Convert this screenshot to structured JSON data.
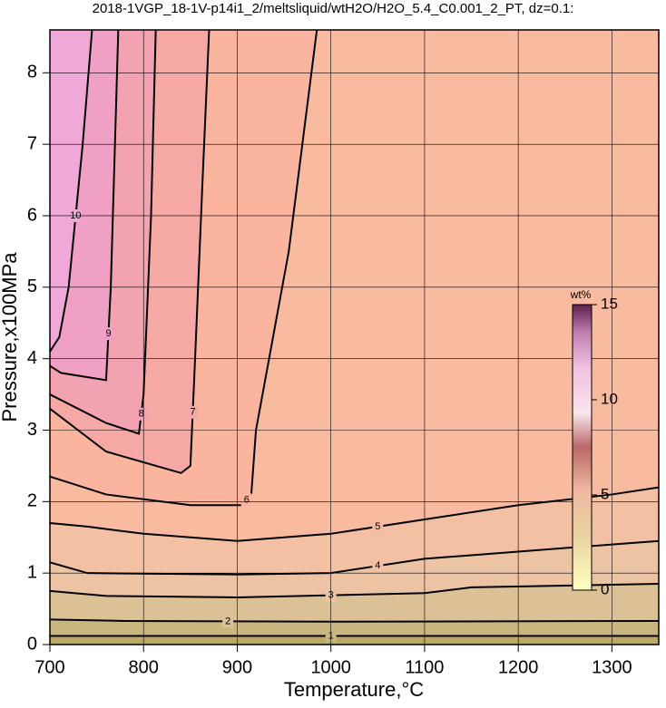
{
  "chart_data": {
    "type": "contour",
    "title": "2018-1VGP_18-1V-p14i1_2/meltsliquid/wtH2O/H2O_5.4_C0.001_2_PT, dz=0.1:",
    "x_label": "Temperature,°C",
    "y_label": "Pressure,x100MPa",
    "xlim": [
      700,
      1350
    ],
    "ylim": [
      0,
      8.6
    ],
    "xticks": [
      700,
      800,
      900,
      1000,
      1100,
      1200,
      1300
    ],
    "yticks": [
      0,
      1,
      2,
      3,
      4,
      5,
      6,
      7,
      8
    ],
    "grid": true,
    "contours": [
      {
        "level": 1,
        "color": "#c9b680",
        "x": [
          700,
          900,
          1100,
          1350
        ],
        "y": [
          0.12,
          0.12,
          0.12,
          0.12
        ]
      },
      {
        "level": 2,
        "color": "#dcc096",
        "x": [
          700,
          780,
          1000,
          1350
        ],
        "y": [
          0.35,
          0.33,
          0.32,
          0.33
        ]
      },
      {
        "level": 3,
        "color": "#ecc4a4",
        "x": [
          700,
          760,
          900,
          1100,
          1150,
          1350
        ],
        "y": [
          0.75,
          0.68,
          0.66,
          0.72,
          0.8,
          0.85
        ]
      },
      {
        "level": 4,
        "color": "#f3c0a3",
        "x": [
          700,
          740,
          900,
          1000,
          1100,
          1200,
          1350
        ],
        "y": [
          1.15,
          1.0,
          0.98,
          1.0,
          1.2,
          1.3,
          1.45
        ]
      },
      {
        "level": 5,
        "color": "#f8bba0",
        "x": [
          700,
          740,
          800,
          900,
          1000,
          1100,
          1200,
          1300,
          1350
        ],
        "y": [
          1.7,
          1.65,
          1.55,
          1.45,
          1.55,
          1.75,
          1.95,
          2.1,
          2.2
        ]
      },
      {
        "level": 6,
        "color": "#fbb59e",
        "x": [
          700,
          760,
          850,
          905,
          915,
          920,
          955,
          985
        ],
        "y": [
          2.35,
          2.1,
          1.95,
          1.95,
          2.1,
          3,
          5.5,
          8.6
        ]
      },
      {
        "level": 7,
        "color": "#f6a8a4",
        "x": [
          700,
          760,
          840,
          850,
          855,
          863,
          870
        ],
        "y": [
          3.3,
          2.7,
          2.4,
          2.5,
          4,
          6.5,
          8.6
        ]
      },
      {
        "level": 8,
        "color": "#f2a2b0",
        "x": [
          700,
          760,
          795,
          800,
          808,
          813
        ],
        "y": [
          3.5,
          3.1,
          2.95,
          3.5,
          6,
          8.6
        ]
      },
      {
        "level": 9,
        "color": "#f0a0c4",
        "x": [
          700,
          712,
          760,
          765,
          773
        ],
        "y": [
          3.9,
          3.8,
          3.7,
          5,
          8.6
        ]
      },
      {
        "level": 10,
        "color": "#f0a8d8",
        "x": [
          700,
          710,
          720,
          735,
          745
        ],
        "y": [
          4.1,
          4.3,
          5,
          7,
          8.6
        ]
      }
    ],
    "colorbar": {
      "label": "wt%",
      "lim": [
        0,
        15
      ],
      "ticks": [
        0,
        5,
        10,
        15
      ]
    }
  }
}
